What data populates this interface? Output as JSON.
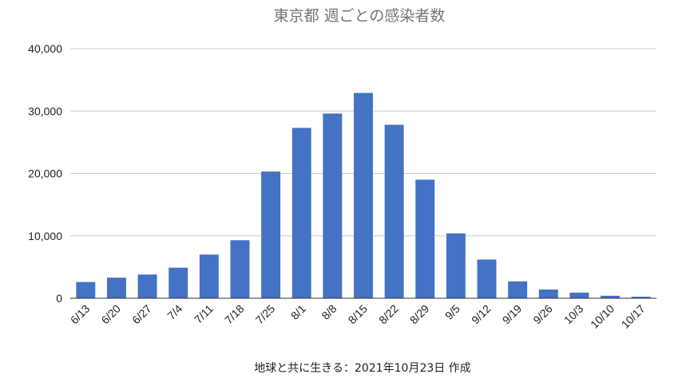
{
  "chart_data": {
    "type": "bar",
    "title": "東京都 週ごとの感染者数",
    "caption": "地球と共に生きる：2021年10月23日 作成",
    "categories": [
      "6/13",
      "6/20",
      "6/27",
      "7/4",
      "7/11",
      "7/18",
      "7/25",
      "8/1",
      "8/8",
      "8/15",
      "8/22",
      "8/29",
      "9/5",
      "9/12",
      "9/19",
      "9/26",
      "10/3",
      "10/10",
      "10/17"
    ],
    "values": [
      2600,
      3300,
      3800,
      4900,
      7000,
      9300,
      20300,
      27300,
      29600,
      32900,
      27800,
      19000,
      10400,
      6200,
      2700,
      1400,
      900,
      400,
      250
    ],
    "ylim": [
      0,
      40000
    ],
    "yticks": [
      "0",
      "10,000",
      "20,000",
      "30,000",
      "40,000"
    ],
    "ytick_values": [
      0,
      10000,
      20000,
      30000,
      40000
    ],
    "grid": true,
    "legend": "none",
    "colors": {
      "bar": "#4472c4",
      "grid": "#cccccc",
      "title": "#757575"
    }
  }
}
